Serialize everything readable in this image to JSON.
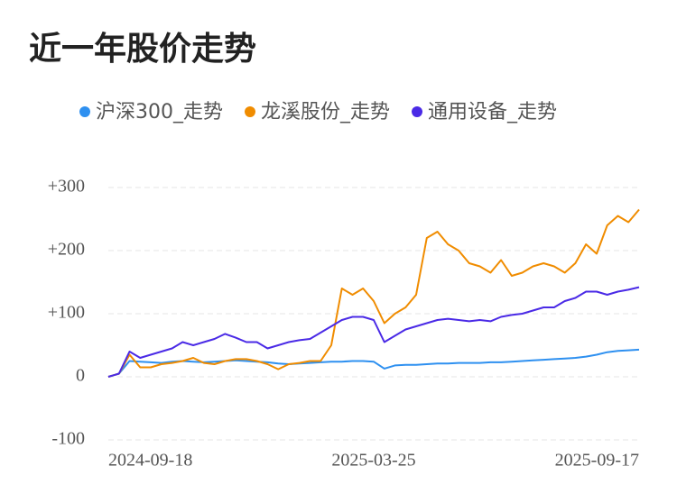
{
  "chart_data": {
    "type": "line",
    "title": "近一年股价走势",
    "categories": [
      "2024-09-18",
      null,
      null,
      null,
      null,
      null,
      null,
      null,
      null,
      null,
      null,
      null,
      null,
      null,
      null,
      null,
      null,
      null,
      null,
      null,
      null,
      null,
      null,
      null,
      null,
      "2025-03-25",
      null,
      null,
      null,
      null,
      null,
      null,
      null,
      null,
      null,
      null,
      null,
      null,
      null,
      null,
      null,
      null,
      null,
      null,
      null,
      null,
      null,
      null,
      null,
      null,
      "2025-09-17"
    ],
    "series": [
      {
        "name": "沪深300_走势",
        "color": "#2e90f0",
        "values": [
          0,
          5,
          25,
          24,
          23,
          22,
          24,
          25,
          24,
          23,
          24,
          25,
          26,
          25,
          24,
          23,
          21,
          20,
          21,
          22,
          23,
          24,
          24,
          25,
          25,
          24,
          13,
          18,
          19,
          19,
          20,
          21,
          21,
          22,
          22,
          22,
          23,
          23,
          24,
          25,
          26,
          27,
          28,
          29,
          30,
          32,
          35,
          39,
          41,
          42,
          43
        ]
      },
      {
        "name": "龙溪股份_走势",
        "color": "#f08c00",
        "values": [
          0,
          5,
          35,
          15,
          15,
          20,
          22,
          25,
          30,
          22,
          20,
          25,
          28,
          28,
          25,
          20,
          12,
          20,
          22,
          25,
          25,
          50,
          140,
          130,
          140,
          120,
          85,
          100,
          110,
          130,
          220,
          230,
          210,
          200,
          180,
          175,
          165,
          185,
          160,
          165,
          175,
          180,
          175,
          165,
          180,
          210,
          195,
          240,
          255,
          245,
          265
        ]
      },
      {
        "name": "通用设备_走势",
        "color": "#4a2ae6",
        "values": [
          0,
          5,
          40,
          30,
          35,
          40,
          45,
          55,
          50,
          55,
          60,
          68,
          62,
          55,
          55,
          45,
          50,
          55,
          58,
          60,
          70,
          80,
          90,
          95,
          95,
          90,
          55,
          65,
          75,
          80,
          85,
          90,
          92,
          90,
          88,
          90,
          88,
          95,
          98,
          100,
          105,
          110,
          110,
          120,
          125,
          135,
          135,
          130,
          135,
          138,
          142
        ]
      }
    ],
    "ylim": [
      -100,
      300
    ],
    "yticks": [
      -100,
      0,
      {
        "value": 100,
        "label": "+100"
      },
      {
        "value": 200,
        "label": "+200"
      },
      {
        "value": 300,
        "label": "+300"
      }
    ],
    "grid": true
  }
}
